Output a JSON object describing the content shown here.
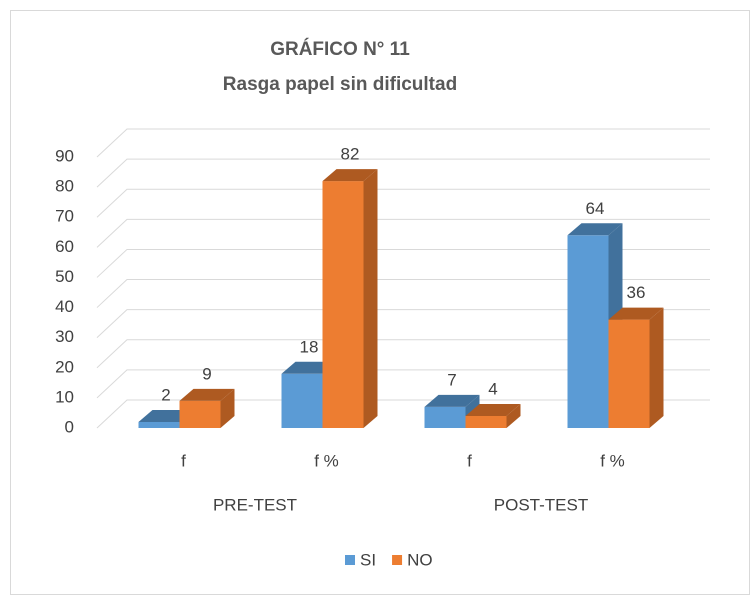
{
  "chart_data": {
    "type": "bar3d",
    "title": [
      "GRÁFICO N° 11",
      "Rasga papel sin dificultad"
    ],
    "categories": [
      "f",
      "f %",
      "f",
      "f %"
    ],
    "group_labels": [
      "PRE-TEST",
      "POST-TEST"
    ],
    "series": [
      {
        "name": "SI",
        "color": "#5b9bd5",
        "side": "#41719c",
        "values": [
          2,
          18,
          7,
          64
        ]
      },
      {
        "name": "NO",
        "color": "#ed7d31",
        "side": "#ae5a21",
        "values": [
          9,
          82,
          4,
          36
        ]
      }
    ],
    "ylim": [
      0,
      90
    ],
    "yticks": [
      0,
      10,
      20,
      30,
      40,
      50,
      60,
      70,
      80,
      90
    ],
    "grid": true,
    "legend": "bottom"
  }
}
